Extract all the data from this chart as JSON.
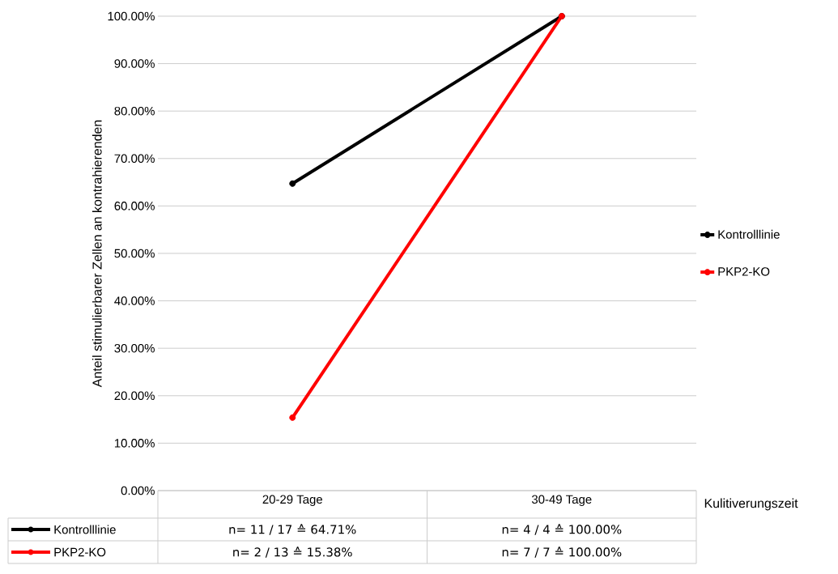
{
  "chart_data": {
    "type": "line",
    "ylabel": "Anteil stimulierbarer Zellen an kontrahierenden",
    "xlabel": "Kulitiverungszeit",
    "categories": [
      "20-29 Tage",
      "30-49 Tage"
    ],
    "series": [
      {
        "name": "Kontrolllinie",
        "color": "#000000",
        "values": [
          64.71,
          100
        ],
        "value_labels": [
          "n= 11 / 17 ≙ 64.71%",
          "n= 4 / 4 ≙ 100.00%"
        ]
      },
      {
        "name": "PKP2-KO",
        "color": "#ff0000",
        "values": [
          15.38,
          100
        ],
        "value_labels": [
          "n= 2 / 13 ≙ 15.38%",
          "n= 7 / 7 ≙ 100.00%"
        ]
      }
    ],
    "ylim": [
      0,
      100
    ],
    "yticks": [
      {
        "value": 0,
        "label": "0.00%"
      },
      {
        "value": 10,
        "label": "10.00%"
      },
      {
        "value": 20,
        "label": "20.00%"
      },
      {
        "value": 30,
        "label": "30.00%"
      },
      {
        "value": 40,
        "label": "40.00%"
      },
      {
        "value": 50,
        "label": "50.00%"
      },
      {
        "value": 60,
        "label": "60.00%"
      },
      {
        "value": 70,
        "label": "70.00%"
      },
      {
        "value": 80,
        "label": "80.00%"
      },
      {
        "value": 90,
        "label": "90.00%"
      },
      {
        "value": 100,
        "label": "100.00%"
      }
    ],
    "grid": "y",
    "legend": "right",
    "marker": "circle",
    "line_style": "solid"
  }
}
